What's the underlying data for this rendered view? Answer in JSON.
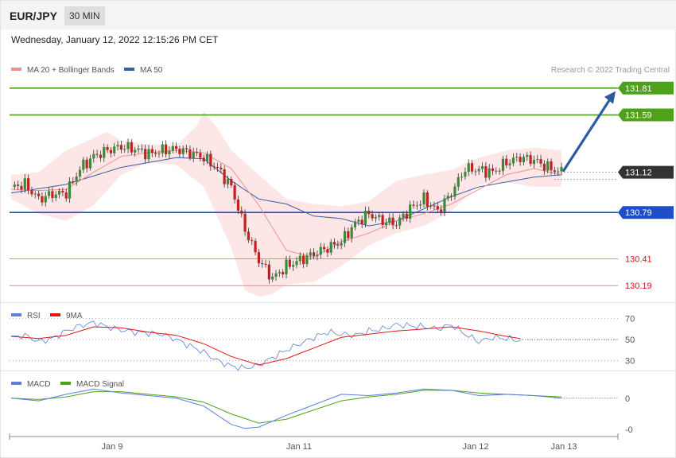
{
  "header": {
    "symbol": "EUR/JPY",
    "timeframe": "30 MIN"
  },
  "timestamp": "Wednesday, January 12, 2022 12:15:26 PM CET",
  "copyright": "Research © 2022 Trading Central",
  "colors": {
    "candle_up": "#3a8a3a",
    "candle_down": "#c42020",
    "ma20": "#f09090",
    "bollinger_fill": "#fde2e2",
    "ma50": "#3b5ea8",
    "resistance": "#4ea21a",
    "pivot": "#1f4fc8",
    "support": "#ef8484",
    "current": "#333333",
    "target_arrow": "#2b5aa0",
    "rsi": "#5b7ee0",
    "rsi_ma": "#e0161a",
    "macd": "#5b7ee0",
    "macd_signal": "#4ea21a"
  },
  "chart_data": [
    {
      "type": "candlestick",
      "legend": [
        {
          "name": "MA 20 + Bollinger Bands",
          "color": "#f09090"
        },
        {
          "name": "MA 50",
          "color": "#3b5ea8"
        }
      ],
      "ylim": [
        130.1,
        131.9
      ],
      "x_ticks": [
        "Jan 9",
        "Jan 11",
        "Jan 12",
        "Jan 13"
      ],
      "levels": [
        {
          "value": 131.81,
          "label": "131.81",
          "kind": "resistance"
        },
        {
          "value": 131.59,
          "label": "131.59",
          "kind": "resistance"
        },
        {
          "value": 131.12,
          "label": "131.12",
          "kind": "current"
        },
        {
          "value": 130.79,
          "label": "130.79",
          "kind": "pivot"
        },
        {
          "value": 130.41,
          "label": "130.41",
          "kind": "support"
        },
        {
          "value": 130.19,
          "label": "130.19",
          "kind": "support"
        }
      ],
      "target": 131.81,
      "close_path": [
        [
          0,
          131.0
        ],
        [
          4,
          131.02
        ],
        [
          8,
          130.9
        ],
        [
          12,
          130.94
        ],
        [
          16,
          130.95
        ],
        [
          20,
          131.15
        ],
        [
          24,
          131.25
        ],
        [
          28,
          131.3
        ],
        [
          32,
          131.33
        ],
        [
          36,
          131.31
        ],
        [
          40,
          131.27
        ],
        [
          44,
          131.3
        ],
        [
          48,
          131.31
        ],
        [
          52,
          131.28
        ],
        [
          56,
          131.24
        ],
        [
          60,
          131.15
        ],
        [
          64,
          131.0
        ],
        [
          68,
          130.65
        ],
        [
          72,
          130.4
        ],
        [
          76,
          130.25
        ],
        [
          80,
          130.35
        ],
        [
          84,
          130.4
        ],
        [
          88,
          130.45
        ],
        [
          92,
          130.5
        ],
        [
          96,
          130.55
        ],
        [
          100,
          130.7
        ],
        [
          104,
          130.78
        ],
        [
          108,
          130.72
        ],
        [
          112,
          130.7
        ],
        [
          116,
          130.82
        ],
        [
          120,
          130.9
        ],
        [
          124,
          130.8
        ],
        [
          128,
          130.95
        ],
        [
          132,
          131.15
        ],
        [
          136,
          131.14
        ],
        [
          140,
          131.12
        ],
        [
          144,
          131.2
        ],
        [
          148,
          131.24
        ],
        [
          152,
          131.22
        ],
        [
          156,
          131.16
        ],
        [
          160,
          131.12
        ]
      ],
      "ma20_path": [
        [
          0,
          130.98
        ],
        [
          8,
          130.97
        ],
        [
          16,
          130.98
        ],
        [
          24,
          131.12
        ],
        [
          32,
          131.25
        ],
        [
          40,
          131.28
        ],
        [
          48,
          131.3
        ],
        [
          56,
          131.28
        ],
        [
          64,
          131.15
        ],
        [
          72,
          130.85
        ],
        [
          80,
          130.48
        ],
        [
          88,
          130.42
        ],
        [
          96,
          130.55
        ],
        [
          104,
          130.62
        ],
        [
          112,
          130.72
        ],
        [
          120,
          130.78
        ],
        [
          128,
          130.86
        ],
        [
          136,
          130.98
        ],
        [
          144,
          131.1
        ],
        [
          152,
          131.15
        ],
        [
          160,
          131.1
        ]
      ],
      "bb_upper": [
        [
          0,
          131.1
        ],
        [
          8,
          131.12
        ],
        [
          16,
          131.3
        ],
        [
          24,
          131.4
        ],
        [
          28,
          131.45
        ],
        [
          32,
          131.38
        ],
        [
          40,
          131.35
        ],
        [
          48,
          131.34
        ],
        [
          54,
          131.5
        ],
        [
          56,
          131.62
        ],
        [
          60,
          131.48
        ],
        [
          64,
          131.3
        ],
        [
          72,
          131.1
        ],
        [
          80,
          130.9
        ],
        [
          88,
          130.86
        ],
        [
          96,
          130.84
        ],
        [
          104,
          130.88
        ],
        [
          112,
          131.05
        ],
        [
          120,
          131.1
        ],
        [
          128,
          131.14
        ],
        [
          136,
          131.24
        ],
        [
          144,
          131.3
        ],
        [
          152,
          131.32
        ],
        [
          160,
          131.3
        ]
      ],
      "bb_lower": [
        [
          0,
          130.9
        ],
        [
          8,
          130.78
        ],
        [
          16,
          130.72
        ],
        [
          24,
          130.85
        ],
        [
          32,
          131.1
        ],
        [
          40,
          131.2
        ],
        [
          48,
          131.18
        ],
        [
          56,
          131.0
        ],
        [
          64,
          130.5
        ],
        [
          68,
          130.15
        ],
        [
          72,
          130.1
        ],
        [
          76,
          130.12
        ],
        [
          80,
          130.2
        ],
        [
          88,
          130.22
        ],
        [
          96,
          130.35
        ],
        [
          104,
          130.52
        ],
        [
          112,
          130.62
        ],
        [
          120,
          130.68
        ],
        [
          128,
          130.8
        ],
        [
          136,
          131.02
        ],
        [
          144,
          131.04
        ],
        [
          152,
          131.0
        ],
        [
          160,
          131.0
        ]
      ],
      "ma50_path": [
        [
          0,
          130.95
        ],
        [
          16,
          131.02
        ],
        [
          32,
          131.16
        ],
        [
          48,
          131.24
        ],
        [
          56,
          131.23
        ],
        [
          64,
          131.05
        ],
        [
          72,
          130.9
        ],
        [
          80,
          130.86
        ],
        [
          88,
          130.76
        ],
        [
          96,
          130.74
        ],
        [
          104,
          130.68
        ],
        [
          112,
          130.72
        ],
        [
          120,
          130.82
        ],
        [
          128,
          130.92
        ],
        [
          136,
          131.0
        ],
        [
          144,
          131.04
        ],
        [
          152,
          131.08
        ],
        [
          160,
          131.1
        ]
      ]
    },
    {
      "type": "line",
      "series": [
        {
          "name": "RSI"
        },
        {
          "name": "9MA"
        }
      ],
      "ylim": [
        20,
        80
      ],
      "y_ticks": [
        70,
        50,
        30
      ],
      "rsi_path": [
        [
          0,
          52
        ],
        [
          4,
          54
        ],
        [
          8,
          48
        ],
        [
          12,
          51
        ],
        [
          16,
          58
        ],
        [
          20,
          63
        ],
        [
          24,
          66
        ],
        [
          28,
          62
        ],
        [
          32,
          59
        ],
        [
          36,
          57
        ],
        [
          40,
          56
        ],
        [
          44,
          55
        ],
        [
          48,
          50
        ],
        [
          52,
          44
        ],
        [
          56,
          38
        ],
        [
          60,
          30
        ],
        [
          64,
          25
        ],
        [
          68,
          23
        ],
        [
          72,
          26
        ],
        [
          76,
          33
        ],
        [
          80,
          40
        ],
        [
          84,
          46
        ],
        [
          88,
          52
        ],
        [
          92,
          57
        ],
        [
          96,
          55
        ],
        [
          100,
          54
        ],
        [
          104,
          58
        ],
        [
          108,
          60
        ],
        [
          112,
          64
        ],
        [
          116,
          63
        ],
        [
          120,
          62
        ],
        [
          124,
          60
        ],
        [
          128,
          64
        ],
        [
          132,
          55
        ],
        [
          136,
          48
        ],
        [
          140,
          52
        ],
        [
          144,
          51
        ],
        [
          148,
          49
        ]
      ],
      "ma_path": [
        [
          0,
          53
        ],
        [
          8,
          51
        ],
        [
          16,
          54
        ],
        [
          24,
          62
        ],
        [
          32,
          61
        ],
        [
          40,
          57
        ],
        [
          48,
          54
        ],
        [
          56,
          46
        ],
        [
          64,
          34
        ],
        [
          72,
          26
        ],
        [
          80,
          32
        ],
        [
          88,
          42
        ],
        [
          96,
          52
        ],
        [
          104,
          55
        ],
        [
          112,
          58
        ],
        [
          120,
          60
        ],
        [
          128,
          62
        ],
        [
          136,
          58
        ],
        [
          144,
          53
        ],
        [
          148,
          51
        ]
      ]
    },
    {
      "type": "line",
      "series": [
        {
          "name": "MACD"
        },
        {
          "name": "MACD Signal"
        }
      ],
      "y_ticks": [
        "0",
        "-0"
      ],
      "ylim": [
        -0.28,
        0.12
      ],
      "macd_path": [
        [
          0,
          0.0
        ],
        [
          8,
          -0.02
        ],
        [
          16,
          0.03
        ],
        [
          24,
          0.07
        ],
        [
          32,
          0.04
        ],
        [
          40,
          0.02
        ],
        [
          48,
          0.0
        ],
        [
          56,
          -0.06
        ],
        [
          64,
          -0.2
        ],
        [
          68,
          -0.23
        ],
        [
          72,
          -0.22
        ],
        [
          80,
          -0.13
        ],
        [
          88,
          -0.05
        ],
        [
          96,
          0.03
        ],
        [
          104,
          0.02
        ],
        [
          112,
          0.04
        ],
        [
          120,
          0.07
        ],
        [
          128,
          0.06
        ],
        [
          136,
          0.02
        ],
        [
          144,
          0.03
        ],
        [
          152,
          0.02
        ],
        [
          160,
          0.0
        ]
      ],
      "signal_path": [
        [
          0,
          0.0
        ],
        [
          8,
          -0.01
        ],
        [
          16,
          0.01
        ],
        [
          24,
          0.05
        ],
        [
          32,
          0.05
        ],
        [
          40,
          0.03
        ],
        [
          48,
          0.01
        ],
        [
          56,
          -0.03
        ],
        [
          64,
          -0.12
        ],
        [
          72,
          -0.19
        ],
        [
          80,
          -0.16
        ],
        [
          88,
          -0.09
        ],
        [
          96,
          -0.02
        ],
        [
          104,
          0.01
        ],
        [
          112,
          0.03
        ],
        [
          120,
          0.06
        ],
        [
          128,
          0.06
        ],
        [
          136,
          0.04
        ],
        [
          144,
          0.03
        ],
        [
          152,
          0.02
        ],
        [
          160,
          0.01
        ]
      ]
    }
  ]
}
